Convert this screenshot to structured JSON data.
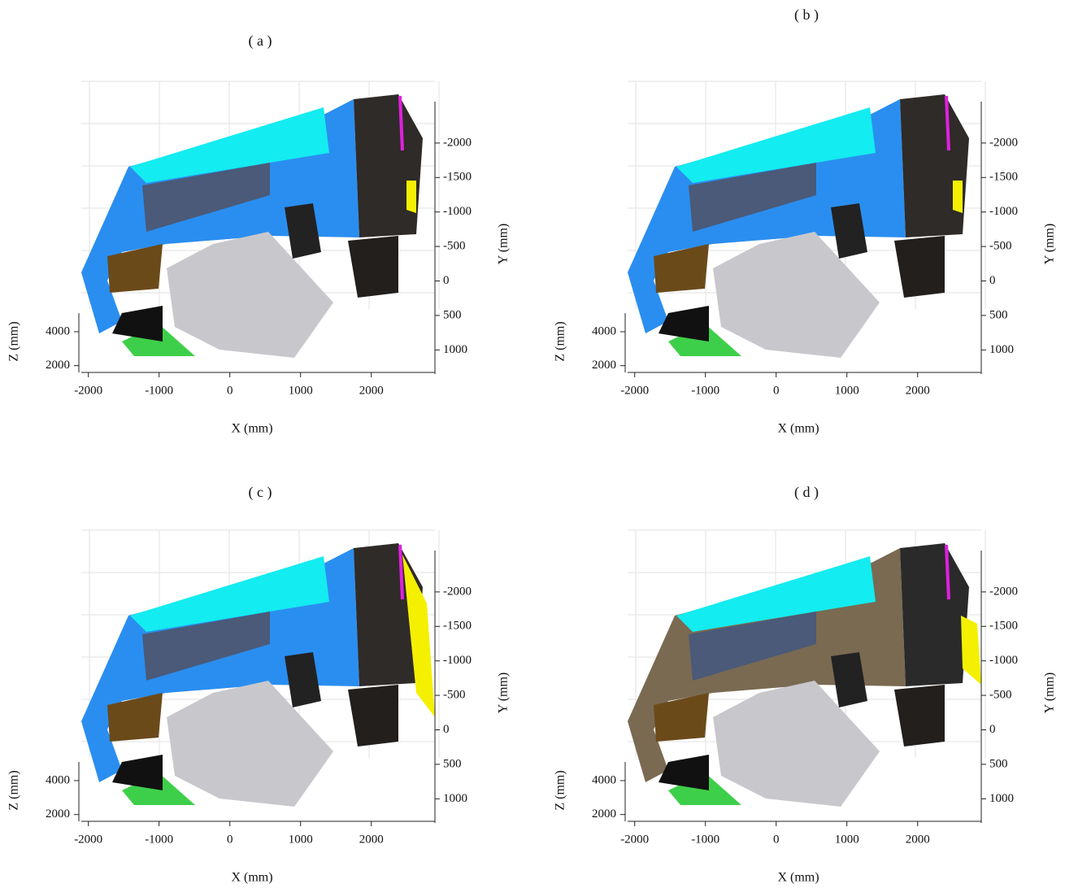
{
  "chart_data": [
    {
      "type": "scatter3d",
      "title": "( a )",
      "x_label": "X (mm)",
      "y_label": "Y (mm)",
      "z_label": "Z (mm)",
      "xlim": [
        -2100,
        2900
      ],
      "xticks": [
        -2000,
        -1000,
        0,
        1000,
        2000
      ],
      "ylim": [
        -2600,
        1350
      ],
      "yticks": [
        -2000,
        -1500,
        -1000,
        -500,
        0,
        500,
        1000
      ],
      "zlim": [
        1600,
        5100
      ],
      "zticks": [
        2000,
        4000
      ]
    },
    {
      "type": "scatter3d",
      "title": "( b )",
      "x_label": "X (mm)",
      "y_label": "Y (mm)",
      "z_label": "Z (mm)",
      "xlim": [
        -2100,
        2900
      ],
      "xticks": [
        -2000,
        -1000,
        0,
        1000,
        2000
      ],
      "ylim": [
        -2600,
        1350
      ],
      "yticks": [
        -2000,
        -1500,
        -1000,
        -500,
        0,
        500,
        1000
      ],
      "zlim": [
        1600,
        5100
      ],
      "zticks": [
        2000,
        4000
      ]
    },
    {
      "type": "scatter3d",
      "title": "( c )",
      "x_label": "X (mm)",
      "y_label": "Y (mm)",
      "z_label": "Z (mm)",
      "xlim": [
        -2100,
        2900
      ],
      "xticks": [
        -2000,
        -1000,
        0,
        1000,
        2000
      ],
      "ylim": [
        -2600,
        1350
      ],
      "yticks": [
        -2000,
        -1500,
        -1000,
        -500,
        0,
        500,
        1000
      ],
      "zlim": [
        1600,
        5100
      ],
      "zticks": [
        2000,
        4000
      ]
    },
    {
      "type": "scatter3d",
      "title": "( d )",
      "x_label": "X (mm)",
      "y_label": "Y (mm)",
      "z_label": "Z (mm)",
      "xlim": [
        -2100,
        2900
      ],
      "xticks": [
        -2000,
        -1000,
        0,
        1000,
        2000
      ],
      "ylim": [
        -2600,
        1350
      ],
      "yticks": [
        -2000,
        -1500,
        -1000,
        -500,
        0,
        500,
        1000
      ],
      "zlim": [
        1600,
        5100
      ],
      "zticks": [
        2000,
        4000
      ]
    }
  ]
}
